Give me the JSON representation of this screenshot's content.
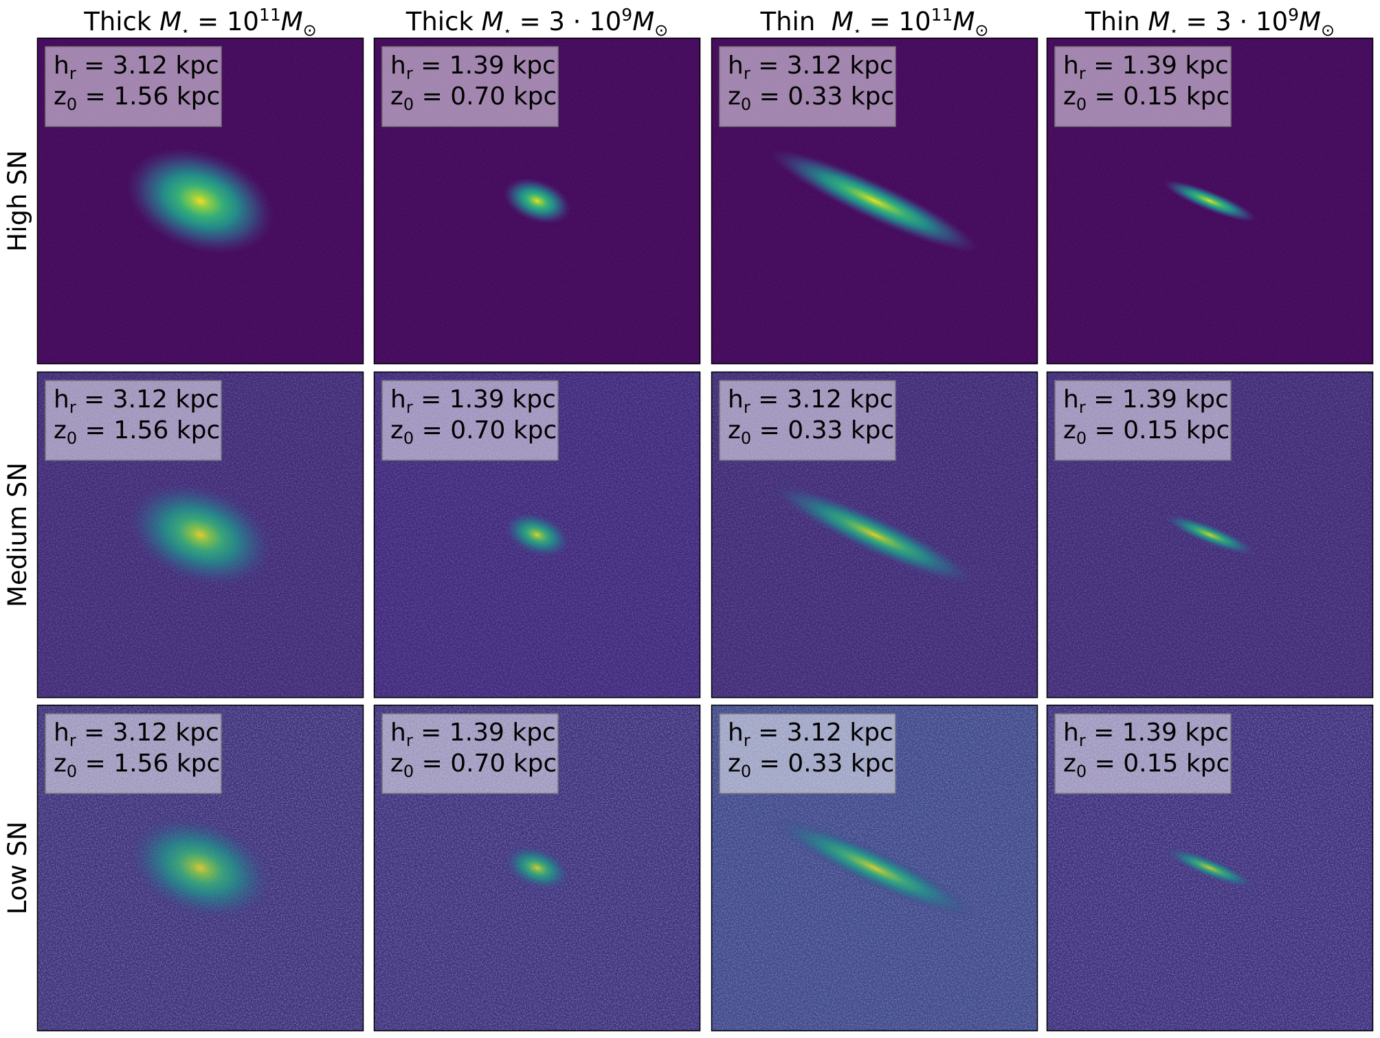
{
  "columns": [
    {
      "name": "Thick ",
      "m": "M",
      "m_sub": "⋆",
      "eq": " = 10",
      "exp": "11",
      "unit": "M",
      "unit_sub": "⊙"
    },
    {
      "name": "Thick ",
      "m": "M",
      "m_sub": "⋆",
      "eq": " = 3 · 10",
      "exp": "9",
      "unit": "M",
      "unit_sub": "⊙"
    },
    {
      "name": "Thin  ",
      "m": "M",
      "m_sub": "⋆",
      "eq": " = 10",
      "exp": "11",
      "unit": "M",
      "unit_sub": "⊙"
    },
    {
      "name": "Thin ",
      "m": "M",
      "m_sub": "⋆",
      "eq": " = 3 · 10",
      "exp": "9",
      "unit": "M",
      "unit_sub": "⊙"
    }
  ],
  "rows": [
    "High SN",
    "Medium SN",
    "Low SN"
  ],
  "panels": [
    [
      {
        "h": "h",
        "h_sub": "r",
        "h_text": " = 3.12 kpc",
        "z": "z",
        "z_sub": "0",
        "z_text": " = 1.56 kpc"
      },
      {
        "h": "h",
        "h_sub": "r",
        "h_text": " = 1.39 kpc",
        "z": "z",
        "z_sub": "0",
        "z_text": " = 0.70 kpc"
      },
      {
        "h": "h",
        "h_sub": "r",
        "h_text": " = 3.12 kpc",
        "z": "z",
        "z_sub": "0",
        "z_text": " = 0.33 kpc"
      },
      {
        "h": "h",
        "h_sub": "r",
        "h_text": " = 1.39 kpc",
        "z": "z",
        "z_sub": "0",
        "z_text": " = 0.15 kpc"
      }
    ],
    [
      {
        "h": "h",
        "h_sub": "r",
        "h_text": " = 3.12 kpc",
        "z": "z",
        "z_sub": "0",
        "z_text": " = 1.56 kpc"
      },
      {
        "h": "h",
        "h_sub": "r",
        "h_text": " = 1.39 kpc",
        "z": "z",
        "z_sub": "0",
        "z_text": " = 0.70 kpc"
      },
      {
        "h": "h",
        "h_sub": "r",
        "h_text": " = 3.12 kpc",
        "z": "z",
        "z_sub": "0",
        "z_text": " = 0.33 kpc"
      },
      {
        "h": "h",
        "h_sub": "r",
        "h_text": " = 1.39 kpc",
        "z": "z",
        "z_sub": "0",
        "z_text": " = 0.15 kpc"
      }
    ],
    [
      {
        "h": "h",
        "h_sub": "r",
        "h_text": " = 3.12 kpc",
        "z": "z",
        "z_sub": "0",
        "z_text": " = 1.56 kpc"
      },
      {
        "h": "h",
        "h_sub": "r",
        "h_text": " = 1.39 kpc",
        "z": "z",
        "z_sub": "0",
        "z_text": " = 0.70 kpc"
      },
      {
        "h": "h",
        "h_sub": "r",
        "h_text": " = 3.12 kpc",
        "z": "z",
        "z_sub": "0",
        "z_text": " = 0.33 kpc"
      },
      {
        "h": "h",
        "h_sub": "r",
        "h_text": " = 1.39 kpc",
        "z": "z",
        "z_sub": "0",
        "z_text": " = 0.15 kpc"
      }
    ]
  ]
}
